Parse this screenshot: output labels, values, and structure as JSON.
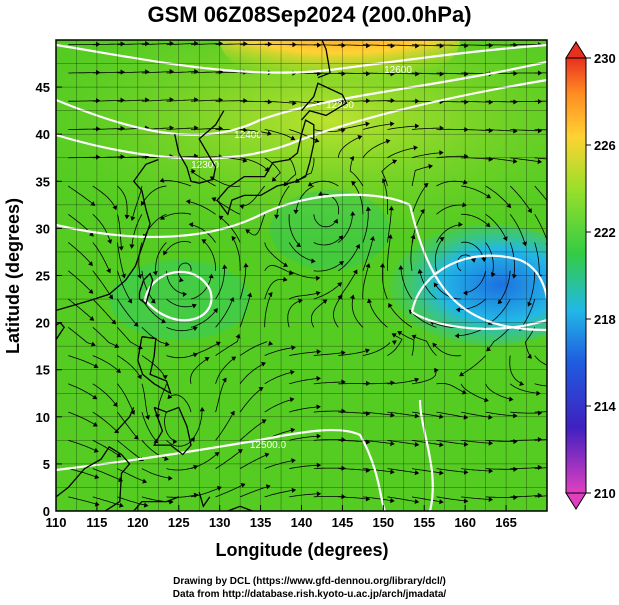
{
  "title": "GSM 06Z08Sep2024 (200.0hPa)",
  "axes": {
    "xlabel": "Longitude (degrees)",
    "ylabel": "Latitude  (degrees)",
    "x_ticks": [
      110,
      115,
      120,
      125,
      130,
      135,
      140,
      145,
      150,
      155,
      160,
      165
    ],
    "y_ticks": [
      0,
      5,
      10,
      15,
      20,
      25,
      30,
      35,
      40,
      45
    ],
    "xlim": [
      110,
      170
    ],
    "ylim": [
      0,
      50
    ]
  },
  "colorbar": {
    "ticks": [
      210,
      214,
      218,
      222,
      226,
      230
    ],
    "range": [
      210,
      230
    ],
    "colors": [
      "#ff33cc",
      "#2222cc",
      "#3399ff",
      "#33cc33",
      "#ffcc33",
      "#ff3333"
    ]
  },
  "contour_labels": [
    "12600",
    "12500.0",
    "12400",
    "12300",
    "12250"
  ],
  "credits": {
    "line1": "Drawing by DCL (https://www.gfd-dennou.org/library/dcl/)",
    "line2": "Data from http://database.rish.kyoto-u.ac.jp/arch/jmadata/"
  }
}
